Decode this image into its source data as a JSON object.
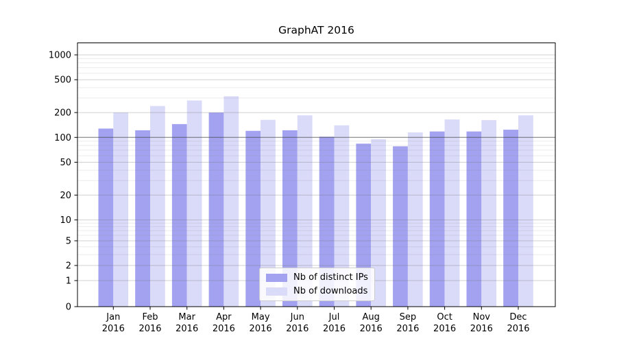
{
  "chart_data": {
    "type": "bar",
    "title": "GraphAT 2016",
    "xlabel": "",
    "ylabel": "",
    "categories": [
      {
        "month": "Jan",
        "year": "2016"
      },
      {
        "month": "Feb",
        "year": "2016"
      },
      {
        "month": "Mar",
        "year": "2016"
      },
      {
        "month": "Apr",
        "year": "2016"
      },
      {
        "month": "May",
        "year": "2016"
      },
      {
        "month": "Jun",
        "year": "2016"
      },
      {
        "month": "Jul",
        "year": "2016"
      },
      {
        "month": "Aug",
        "year": "2016"
      },
      {
        "month": "Sep",
        "year": "2016"
      },
      {
        "month": "Oct",
        "year": "2016"
      },
      {
        "month": "Nov",
        "year": "2016"
      },
      {
        "month": "Dec",
        "year": "2016"
      }
    ],
    "series": [
      {
        "name": "Nb of distinct IPs",
        "color": "#a2a2f0",
        "values": [
          128,
          122,
          145,
          200,
          120,
          122,
          102,
          84,
          78,
          118,
          118,
          124
        ]
      },
      {
        "name": "Nb of downloads",
        "color": "#dadaf9",
        "values": [
          200,
          240,
          280,
          315,
          163,
          185,
          140,
          95,
          115,
          165,
          162,
          185
        ]
      }
    ],
    "y_axis": {
      "scale": "symlog",
      "ticks": [
        0,
        1,
        2,
        5,
        10,
        20,
        50,
        100,
        200,
        500,
        1000
      ],
      "minor_tick_multiples": [
        3,
        4,
        6,
        7,
        8,
        9
      ],
      "reference_line": 100,
      "ylim": [
        0,
        1200
      ],
      "grid": "on"
    },
    "legend": {
      "position": "lower center"
    }
  }
}
